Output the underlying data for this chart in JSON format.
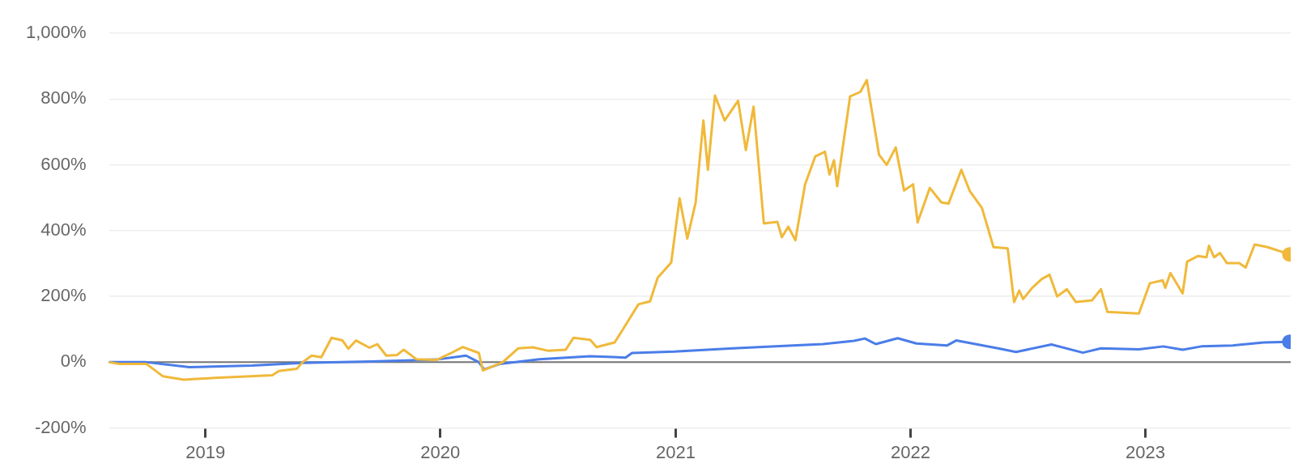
{
  "chart_data": {
    "type": "line",
    "xlim": [
      "2018-08-04",
      "2023-08-15"
    ],
    "ylim": [
      -200,
      1000
    ],
    "xticks": [
      {
        "value": "2019-01-01",
        "label": "2019"
      },
      {
        "value": "2020-01-01",
        "label": "2020"
      },
      {
        "value": "2021-01-01",
        "label": "2021"
      },
      {
        "value": "2022-01-01",
        "label": "2022"
      },
      {
        "value": "2023-01-01",
        "label": "2023"
      }
    ],
    "yticks": [
      {
        "value": -200,
        "label": "-200%"
      },
      {
        "value": 0,
        "label": "0%"
      },
      {
        "value": 200,
        "label": "200%"
      },
      {
        "value": 400,
        "label": "400%"
      },
      {
        "value": 600,
        "label": "600%"
      },
      {
        "value": 800,
        "label": "800%"
      },
      {
        "value": 1000,
        "label": "1,000%"
      }
    ],
    "grid": "y",
    "legend": false,
    "line_style": "solid",
    "ref_lines": [
      {
        "axis": "y",
        "value": 0,
        "color": "#757575"
      }
    ],
    "series": [
      {
        "color": "#f0b93a",
        "x": [
          "2018-08-04",
          "2018-08-20",
          "2018-10-01",
          "2018-10-27",
          "2018-11-28",
          "2019-01-15",
          "2019-04-15",
          "2019-04-25",
          "2019-05-23",
          "2019-06-01",
          "2019-06-15",
          "2019-06-30",
          "2019-07-16",
          "2019-08-02",
          "2019-08-11",
          "2019-08-23",
          "2019-09-13",
          "2019-09-25",
          "2019-10-09",
          "2019-10-26",
          "2019-11-05",
          "2019-11-25",
          "2019-12-26",
          "2020-01-18",
          "2020-02-05",
          "2020-03-01",
          "2020-03-07",
          "2020-04-07",
          "2020-05-01",
          "2020-05-24",
          "2020-06-16",
          "2020-07-14",
          "2020-07-26",
          "2020-08-21",
          "2020-08-31",
          "2020-09-28",
          "2020-10-09",
          "2020-11-04",
          "2020-11-22",
          "2020-12-04",
          "2020-12-25",
          "2021-01-07",
          "2021-01-19",
          "2021-02-01",
          "2021-02-13",
          "2021-02-20",
          "2021-03-03",
          "2021-03-18",
          "2021-04-08",
          "2021-04-20",
          "2021-05-02",
          "2021-05-18",
          "2021-06-08",
          "2021-06-15",
          "2021-06-25",
          "2021-07-06",
          "2021-07-21",
          "2021-08-06",
          "2021-08-21",
          "2021-08-28",
          "2021-09-04",
          "2021-09-09",
          "2021-09-29",
          "2021-10-15",
          "2021-10-25",
          "2021-11-13",
          "2021-11-25",
          "2021-12-09",
          "2021-12-22",
          "2022-01-05",
          "2022-01-12",
          "2022-01-31",
          "2022-02-18",
          "2022-03-01",
          "2022-03-21",
          "2022-04-03",
          "2022-04-22",
          "2022-05-10",
          "2022-06-01",
          "2022-06-11",
          "2022-06-19",
          "2022-06-25",
          "2022-07-09",
          "2022-07-24",
          "2022-08-05",
          "2022-08-17",
          "2022-09-01",
          "2022-09-15",
          "2022-10-10",
          "2022-10-24",
          "2022-11-03",
          "2022-12-22",
          "2023-01-08",
          "2023-01-28",
          "2023-02-01",
          "2023-02-09",
          "2023-02-28",
          "2023-03-07",
          "2023-03-24",
          "2023-04-06",
          "2023-04-10",
          "2023-04-18",
          "2023-04-27",
          "2023-05-08",
          "2023-05-27",
          "2023-06-06",
          "2023-06-20",
          "2023-07-10",
          "2023-08-13"
        ],
        "values": [
          0,
          -5,
          -5,
          -43,
          -53,
          -48,
          -40,
          -27,
          -20,
          0,
          20,
          15,
          74,
          66,
          41,
          66,
          44,
          55,
          20,
          22,
          38,
          9,
          7,
          28,
          46,
          28,
          -25,
          0,
          42,
          45,
          35,
          38,
          74,
          68,
          46,
          60,
          94,
          176,
          185,
          257,
          303,
          498,
          376,
          486,
          735,
          585,
          811,
          735,
          795,
          645,
          777,
          422,
          427,
          380,
          412,
          371,
          540,
          626,
          640,
          571,
          614,
          535,
          808,
          822,
          858,
          631,
          600,
          653,
          522,
          541,
          425,
          530,
          486,
          482,
          585,
          521,
          469,
          350,
          346,
          183,
          218,
          192,
          226,
          253,
          266,
          200,
          222,
          183,
          188,
          222,
          153,
          148,
          240,
          249,
          226,
          271,
          209,
          306,
          323,
          319,
          354,
          319,
          332,
          301,
          301,
          288,
          358,
          350,
          328
        ]
      },
      {
        "color": "#4a7de8",
        "x": [
          "2018-08-04",
          "2018-10-01",
          "2018-12-07",
          "2019-03-15",
          "2019-06-01",
          "2019-09-15",
          "2019-12-26",
          "2020-02-10",
          "2020-03-01",
          "2020-03-09",
          "2020-04-03",
          "2020-06-03",
          "2020-08-21",
          "2020-10-15",
          "2020-10-25",
          "2020-12-30",
          "2021-03-31",
          "2021-07-02",
          "2021-08-18",
          "2021-10-05",
          "2021-10-22",
          "2021-11-08",
          "2021-12-12",
          "2022-01-10",
          "2022-02-27",
          "2022-03-13",
          "2022-05-17",
          "2022-06-14",
          "2022-08-08",
          "2022-09-26",
          "2022-10-24",
          "2022-12-22",
          "2023-01-29",
          "2023-02-28",
          "2023-03-29",
          "2023-05-17",
          "2023-07-04",
          "2023-08-13"
        ],
        "values": [
          0,
          0,
          -15,
          -10,
          -2,
          2,
          8,
          20,
          0,
          -22,
          -5,
          9,
          18,
          14,
          28,
          32,
          42,
          51,
          55,
          65,
          72,
          55,
          73,
          57,
          51,
          66,
          42,
          31,
          54,
          29,
          42,
          39,
          48,
          38,
          48,
          51,
          60,
          62
        ]
      },
      {
        "type": "scatter",
        "color": "#f0b93a",
        "x": [
          "2023-08-13"
        ],
        "values": [
          328
        ]
      },
      {
        "type": "scatter",
        "color": "#4a7de8",
        "x": [
          "2023-08-13"
        ],
        "values": [
          62
        ]
      }
    ]
  }
}
